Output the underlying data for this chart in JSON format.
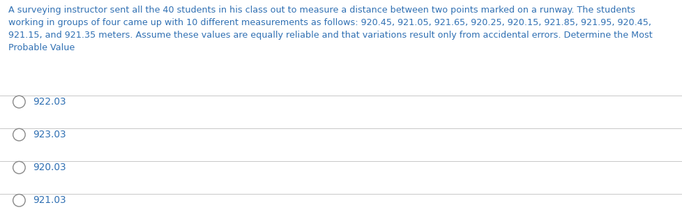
{
  "question_text": "A surveying instructor sent all the 40 students in his class out to measure a distance between two points marked on a runway. The students\nworking in groups of four came up with 10 different measurements as follows: 920.45, 921.05, 921.65, 920.25, 920.15, 921.85, 921.95, 920.45,\n921.15, and 921.35 meters. Assume these values are equally reliable and that variations result only from accidental errors. Determine the Most\nProbable Value",
  "options": [
    "922.03",
    "923.03",
    "920.03",
    "921.03"
  ],
  "text_color": "#3070b3",
  "background_color": "#ffffff",
  "line_color": "#c8c8c8",
  "circle_edge_color": "#888888",
  "option_text_color": "#3070b3",
  "question_fontsize": 9.2,
  "option_fontsize": 9.8,
  "fig_width": 9.79,
  "fig_height": 3.14,
  "dpi": 100
}
